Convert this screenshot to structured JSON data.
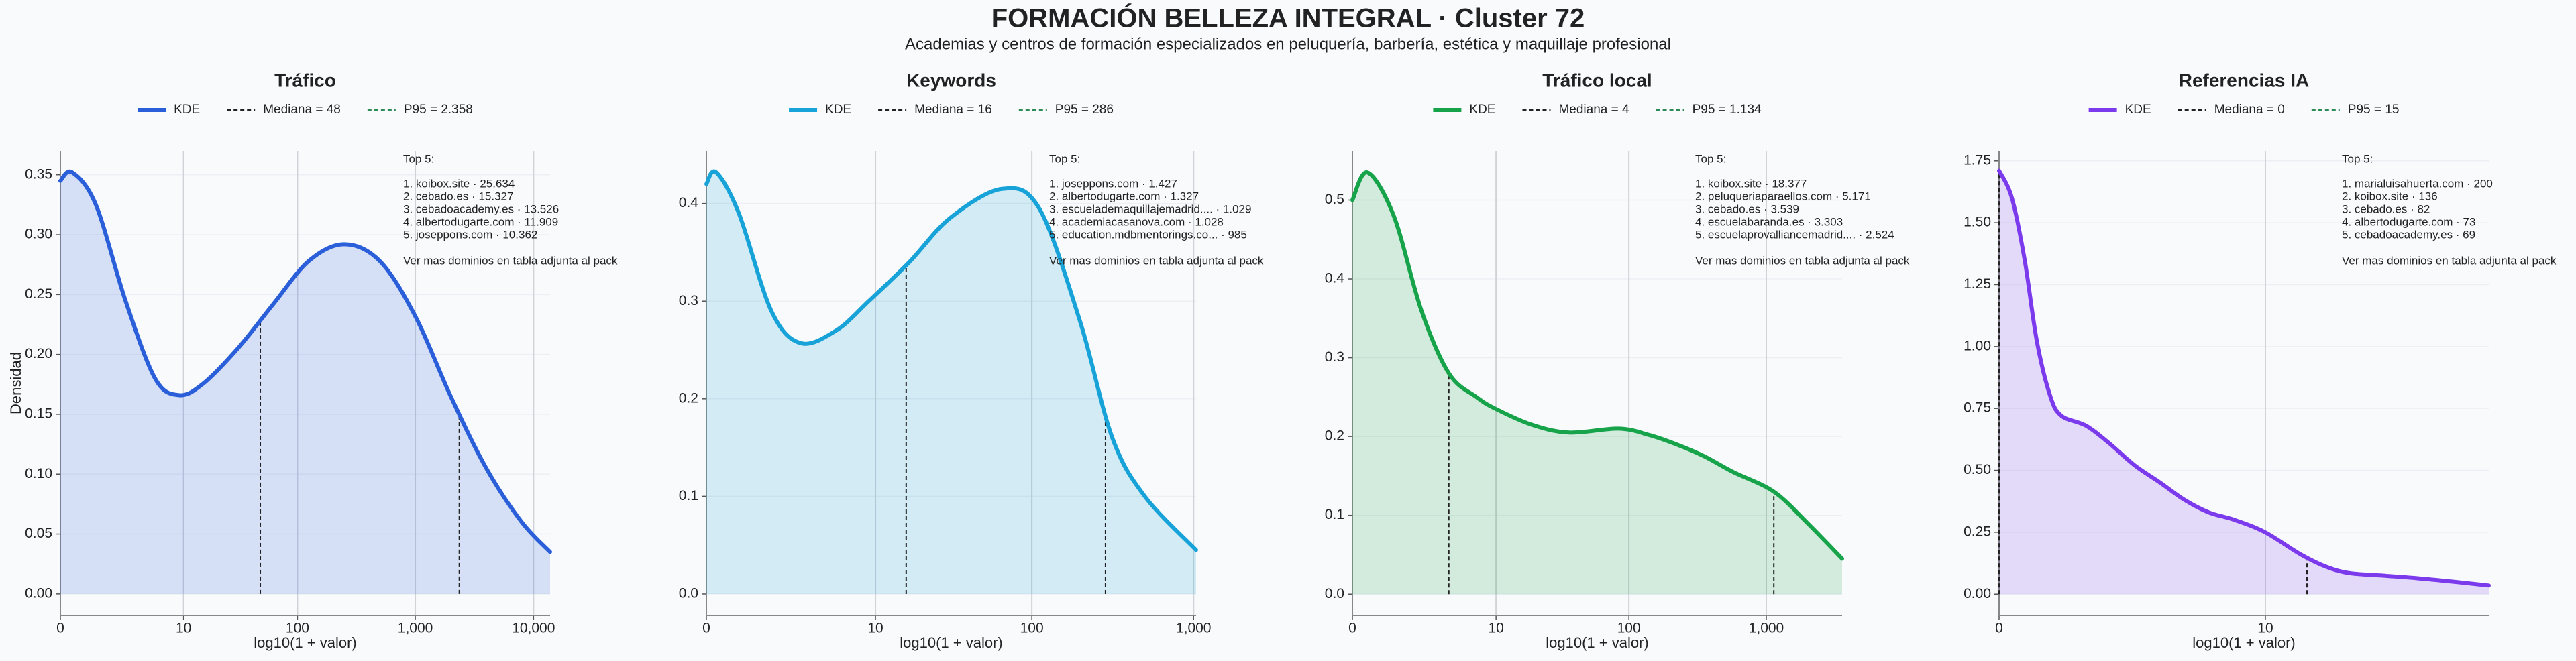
{
  "title": "FORMACIÓN BELLEZA INTEGRAL · Cluster 72",
  "subtitle": "Academias y centros de formación especializados en peluquería, barbería, estética y maquillaje profesional",
  "chart_data": [
    {
      "type": "area",
      "title": "Tráfico",
      "xlabel": "log10(1 + valor)",
      "ylabel": "Densidad",
      "series": [
        {
          "name": "KDE",
          "color": "#2a5fd9",
          "x": [
            0,
            0.1,
            0.3,
            0.55,
            0.8,
            1.0,
            1.2,
            1.5,
            1.8,
            2.1,
            2.4,
            2.7,
            3.0,
            3.3,
            3.6,
            3.9,
            4.14
          ],
          "values": [
            0.345,
            0.352,
            0.325,
            0.245,
            0.18,
            0.166,
            0.175,
            0.205,
            0.242,
            0.278,
            0.292,
            0.278,
            0.232,
            0.165,
            0.105,
            0.06,
            0.035
          ]
        }
      ],
      "median": {
        "name": "Mediana = 48",
        "value": 48,
        "color": "#222222"
      },
      "p95": {
        "name": "P95 = 2.358",
        "value": 2358,
        "color": "#2e8b57"
      },
      "xlim": [
        0,
        4.14
      ],
      "xticks": [
        0,
        {
          "value": 1.0414,
          "label": "10"
        },
        {
          "value": 2.0043,
          "label": "100"
        },
        {
          "value": 3.0004,
          "label": "1,000"
        },
        {
          "value": 4.0,
          "label": "10,000"
        }
      ],
      "ylim": [
        -0.018,
        0.37
      ],
      "yticks": [
        {
          "value": 0,
          "label": "0.00"
        },
        0.05,
        {
          "value": 0.1,
          "label": "0.10"
        },
        0.15,
        {
          "value": 0.2,
          "label": "0.20"
        },
        0.25,
        {
          "value": 0.3,
          "label": "0.30"
        },
        0.35
      ],
      "grid": true,
      "annotation": {
        "heading": "Top 5:",
        "items": [
          "1. koibox.site · 25.634",
          "2. cebado.es · 15.327",
          "3. cebadoacademy.es · 13.526",
          "4. albertodugarte.com · 11.909",
          "5. joseppons.com · 10.362"
        ],
        "footer": "Ver mas dominios en tabla adjunta al pack"
      }
    },
    {
      "type": "area",
      "title": "Keywords",
      "xlabel": "log10(1 + valor)",
      "series": [
        {
          "name": "KDE",
          "color": "#17a2d8",
          "x": [
            0,
            0.06,
            0.2,
            0.4,
            0.58,
            0.8,
            1.0,
            1.25,
            1.5,
            1.82,
            2.05,
            2.3,
            2.5,
            2.7,
            3.016
          ],
          "values": [
            0.42,
            0.432,
            0.39,
            0.29,
            0.257,
            0.27,
            0.3,
            0.34,
            0.385,
            0.415,
            0.395,
            0.28,
            0.16,
            0.1,
            0.045
          ]
        }
      ],
      "median": {
        "name": "Mediana = 16",
        "value": 16,
        "color": "#222222"
      },
      "p95": {
        "name": "P95 = 286",
        "value": 286,
        "color": "#2e8b57"
      },
      "xlim": [
        0,
        3.016
      ],
      "xticks": [
        0,
        {
          "value": 1.0414,
          "label": "10"
        },
        {
          "value": 2.0043,
          "label": "100"
        },
        {
          "value": 3.0004,
          "label": "1,000"
        }
      ],
      "ylim": [
        -0.022,
        0.454
      ],
      "yticks": [
        {
          "value": 0,
          "label": "0.0"
        },
        0.1,
        0.2,
        0.3,
        0.4
      ],
      "grid": true,
      "annotation": {
        "heading": "Top 5:",
        "items": [
          "1. joseppons.com · 1.427",
          "2. albertodugarte.com · 1.327",
          "3. escuelademaquillajemadrid.... · 1.029",
          "4. academiacasanova.com · 1.028",
          "5. education.mdbmentorings.co... · 985"
        ],
        "footer": "Ver mas dominios en tabla adjunta al pack"
      }
    },
    {
      "type": "area",
      "title": "Tráfico local",
      "xlabel": "log10(1 + valor)",
      "series": [
        {
          "name": "KDE",
          "color": "#16a34a",
          "x": [
            0,
            0.11,
            0.3,
            0.5,
            0.7,
            0.9,
            1.04,
            1.3,
            1.57,
            1.93,
            2.15,
            2.35,
            2.55,
            2.76,
            3.055,
            3.3,
            3.55
          ],
          "values": [
            0.5,
            0.535,
            0.48,
            0.36,
            0.28,
            0.25,
            0.235,
            0.215,
            0.205,
            0.21,
            0.202,
            0.19,
            0.175,
            0.155,
            0.13,
            0.09,
            0.045
          ]
        }
      ],
      "median": {
        "name": "Mediana = 4",
        "value": 4,
        "color": "#222222"
      },
      "p95": {
        "name": "P95 = 1.134",
        "value": 1134,
        "color": "#2e8b57"
      },
      "xlim": [
        0,
        3.55
      ],
      "xticks": [
        0,
        {
          "value": 1.0414,
          "label": "10"
        },
        {
          "value": 2.0043,
          "label": "100"
        },
        {
          "value": 3.0004,
          "label": "1,000"
        }
      ],
      "ylim": [
        -0.027,
        0.5625
      ],
      "yticks": [
        {
          "value": 0,
          "label": "0.0"
        },
        0.1,
        0.2,
        0.3,
        0.4,
        0.5
      ],
      "grid": true,
      "annotation": {
        "heading": "Top 5:",
        "items": [
          "1. koibox.site · 18.377",
          "2. peluqueriaparaellos.com · 5.171",
          "3. cebado.es · 3.539",
          "4. escuelabaranda.es · 3.303",
          "5. escuelaprovalliancemadrid.... · 2.524"
        ],
        "footer": "Ver mas dominios en tabla adjunta al pack"
      }
    },
    {
      "type": "area",
      "title": "Referencias IA",
      "xlabel": "log10(1 + valor)",
      "series": [
        {
          "name": "KDE",
          "color": "#7c3aed",
          "x": [
            0,
            0.05,
            0.1,
            0.148,
            0.2,
            0.244,
            0.34,
            0.43,
            0.53,
            0.63,
            0.726,
            0.82,
            0.92,
            1.04,
            1.18,
            1.28,
            1.37,
            1.5,
            1.63,
            1.78,
            1.915
          ],
          "values": [
            1.71,
            1.6,
            1.35,
            1.02,
            0.8,
            0.72,
            0.68,
            0.61,
            0.52,
            0.45,
            0.38,
            0.33,
            0.3,
            0.25,
            0.16,
            0.11,
            0.085,
            0.075,
            0.065,
            0.05,
            0.035
          ]
        }
      ],
      "median": {
        "name": "Mediana = 0",
        "value": 0,
        "color": "#222222"
      },
      "p95": {
        "name": "P95 = 15",
        "value": 15,
        "color": "#2e8b57"
      },
      "xlim": [
        0,
        1.915
      ],
      "xticks": [
        0,
        {
          "value": 1.0414,
          "label": "10"
        }
      ],
      "ylim": [
        -0.086,
        1.79
      ],
      "yticks": [
        {
          "value": 0,
          "label": "0.00"
        },
        0.25,
        {
          "value": 0.5,
          "label": "0.50"
        },
        0.75,
        {
          "value": 1,
          "label": "1.00"
        },
        1.25,
        {
          "value": 1.5,
          "label": "1.50"
        },
        1.75
      ],
      "grid": true,
      "annotation": {
        "heading": "Top 5:",
        "items": [
          "1. marialuisahuerta.com · 200",
          "2. koibox.site · 136",
          "3. cebado.es · 82",
          "4. albertodugarte.com · 73",
          "5. cebadoacademy.es · 69"
        ],
        "footer": "Ver mas dominios en tabla adjunta al pack"
      }
    }
  ]
}
